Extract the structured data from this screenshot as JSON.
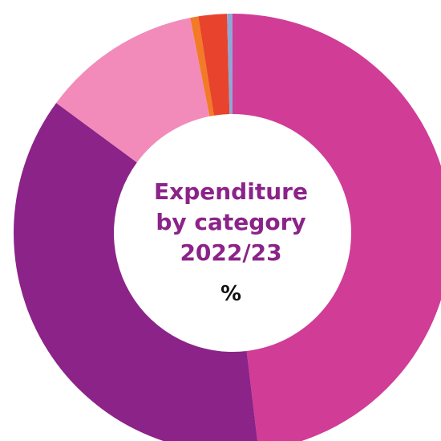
{
  "chart_data": {
    "type": "donut",
    "title": [
      "Expenditure",
      "by category",
      "2022/23"
    ],
    "subtitle": "%",
    "categories": [
      null,
      null,
      null,
      null,
      null,
      null
    ],
    "values": [
      48.1,
      37.0,
      11.8,
      0.6,
      2.1,
      0.4
    ],
    "colors": [
      "#d03c96",
      "#8b2389",
      "#f28bba",
      "#f37a26",
      "#e8432d",
      "#8fa6d6"
    ]
  }
}
